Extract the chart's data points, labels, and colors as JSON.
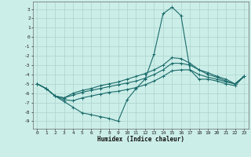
{
  "xlabel": "Humidex (Indice chaleur)",
  "xlim": [
    -0.5,
    23.5
  ],
  "ylim": [
    -9.8,
    3.8
  ],
  "yticks": [
    3,
    2,
    1,
    0,
    -1,
    -2,
    -3,
    -4,
    -5,
    -6,
    -7,
    -8,
    -9
  ],
  "xticks": [
    0,
    1,
    2,
    3,
    4,
    5,
    6,
    7,
    8,
    9,
    10,
    11,
    12,
    13,
    14,
    15,
    16,
    17,
    18,
    19,
    20,
    21,
    22,
    23
  ],
  "bg_color": "#cceee8",
  "grid_color": "#aad4cc",
  "line_color": "#1a6b6b",
  "line1_x": [
    0,
    1,
    2,
    3,
    4,
    5,
    6,
    7,
    8,
    9,
    10,
    11,
    12,
    13,
    14,
    15,
    16,
    17,
    18,
    19,
    20,
    21,
    22,
    23
  ],
  "line1_y": [
    -5.0,
    -5.5,
    -6.3,
    -6.9,
    -7.5,
    -8.1,
    -8.3,
    -8.5,
    -8.7,
    -9.0,
    -6.7,
    -5.5,
    -4.5,
    -1.8,
    2.5,
    3.2,
    2.3,
    -3.5,
    -4.5,
    -4.5,
    -4.7,
    -5.0,
    -5.2,
    -4.2
  ],
  "line2_x": [
    0,
    1,
    2,
    3,
    4,
    5,
    6,
    7,
    8,
    9,
    10,
    11,
    12,
    13,
    14,
    15,
    16,
    17,
    18,
    19,
    20,
    21,
    22,
    23
  ],
  "line2_y": [
    -5.0,
    -5.5,
    -6.3,
    -6.7,
    -6.8,
    -6.5,
    -6.3,
    -6.1,
    -5.9,
    -5.8,
    -5.6,
    -5.4,
    -5.1,
    -4.7,
    -4.2,
    -3.6,
    -3.5,
    -3.5,
    -4.0,
    -4.3,
    -4.5,
    -4.8,
    -5.0,
    -4.2
  ],
  "line3_x": [
    0,
    1,
    2,
    3,
    4,
    5,
    6,
    7,
    8,
    9,
    10,
    11,
    12,
    13,
    14,
    15,
    16,
    17,
    18,
    19,
    20,
    21,
    22,
    23
  ],
  "line3_y": [
    -5.0,
    -5.5,
    -6.3,
    -6.5,
    -6.2,
    -5.9,
    -5.7,
    -5.5,
    -5.3,
    -5.1,
    -4.9,
    -4.7,
    -4.4,
    -4.0,
    -3.5,
    -2.8,
    -2.8,
    -3.0,
    -3.5,
    -4.0,
    -4.3,
    -4.7,
    -5.0,
    -4.2
  ],
  "line4_x": [
    0,
    1,
    2,
    3,
    4,
    5,
    6,
    7,
    8,
    9,
    10,
    11,
    12,
    13,
    14,
    15,
    16,
    17,
    18,
    19,
    20,
    21,
    22,
    23
  ],
  "line4_y": [
    -5.0,
    -5.5,
    -6.3,
    -6.5,
    -6.0,
    -5.7,
    -5.5,
    -5.2,
    -5.0,
    -4.8,
    -4.5,
    -4.2,
    -3.9,
    -3.5,
    -3.0,
    -2.2,
    -2.3,
    -2.8,
    -3.5,
    -3.8,
    -4.2,
    -4.5,
    -5.0,
    -4.2
  ]
}
